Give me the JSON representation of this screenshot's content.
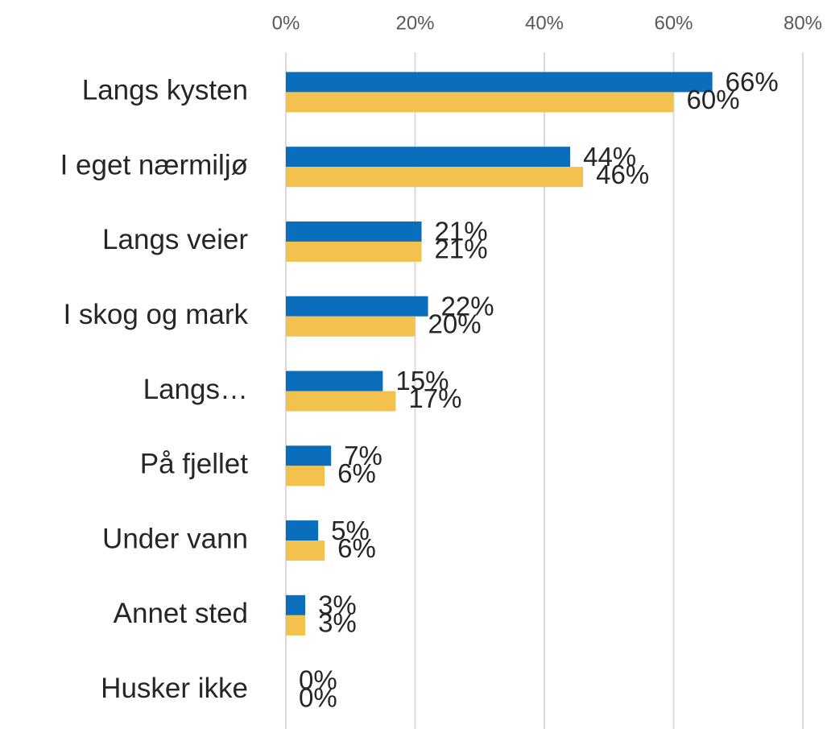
{
  "chart_data": {
    "type": "bar",
    "orientation": "horizontal",
    "categories": [
      "Langs kysten",
      "I eget nærmiljø",
      "Langs veier",
      "I skog og mark",
      "Langs…",
      "På fjellet",
      "Under vann",
      "Annet sted",
      "Husker ikke"
    ],
    "series": [
      {
        "color": "#0a6ebd",
        "values": [
          66,
          44,
          21,
          22,
          15,
          7,
          5,
          3,
          0
        ],
        "value_labels": [
          "66%",
          "44%",
          "21%",
          "22%",
          "15%",
          "7%",
          "5%",
          "3%",
          "0%"
        ]
      },
      {
        "color": "#f2c14e",
        "values": [
          60,
          46,
          21,
          20,
          17,
          6,
          6,
          3,
          0
        ],
        "value_labels": [
          "60%",
          "46%",
          "21%",
          "20%",
          "17%",
          "6%",
          "6%",
          "3%",
          "0%"
        ]
      }
    ],
    "xlim": [
      0,
      80
    ],
    "xticks": [
      {
        "value": 0,
        "label": "0%"
      },
      {
        "value": 20,
        "label": "20%"
      },
      {
        "value": 40,
        "label": "40%"
      },
      {
        "value": 60,
        "label": "60%"
      },
      {
        "value": 80,
        "label": "80%"
      }
    ],
    "grid": true
  }
}
